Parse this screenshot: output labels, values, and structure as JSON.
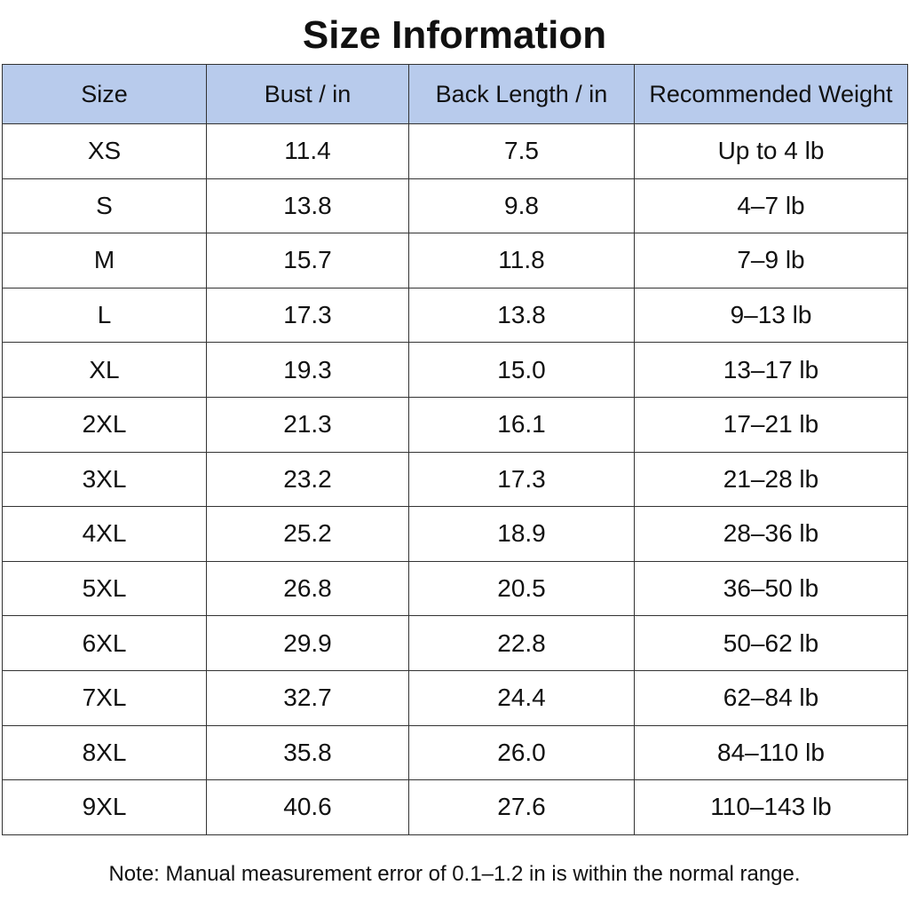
{
  "title": "Size Information",
  "table": {
    "header": [
      "Size",
      "Bust / in",
      "Back Length / in",
      "Recommended Weight"
    ],
    "rows": [
      [
        "XS",
        "11.4",
        "7.5",
        "Up to 4 lb"
      ],
      [
        "S",
        "13.8",
        "9.8",
        "4–7 lb"
      ],
      [
        "M",
        "15.7",
        "11.8",
        "7–9 lb"
      ],
      [
        "L",
        "17.3",
        "13.8",
        "9–13 lb"
      ],
      [
        "XL",
        "19.3",
        "15.0",
        "13–17 lb"
      ],
      [
        "2XL",
        "21.3",
        "16.1",
        "17–21 lb"
      ],
      [
        "3XL",
        "23.2",
        "17.3",
        "21–28 lb"
      ],
      [
        "4XL",
        "25.2",
        "18.9",
        "28–36 lb"
      ],
      [
        "5XL",
        "26.8",
        "20.5",
        "36–50 lb"
      ],
      [
        "6XL",
        "29.9",
        "22.8",
        "50–62 lb"
      ],
      [
        "7XL",
        "32.7",
        "24.4",
        "62–84 lb"
      ],
      [
        "8XL",
        "35.8",
        "26.0",
        "84–110 lb"
      ],
      [
        "9XL",
        "40.6",
        "27.6",
        "110–143 lb"
      ]
    ]
  },
  "note": "Note: Manual measurement error of 0.1–1.2 in is within the normal range."
}
